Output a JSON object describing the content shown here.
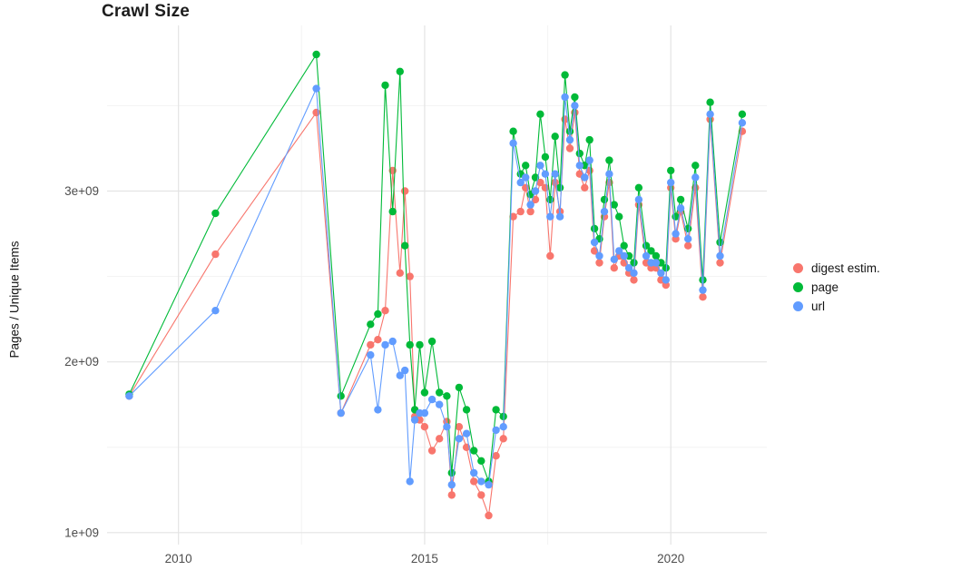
{
  "chart_data": {
    "type": "line",
    "title": "Crawl Size",
    "xlabel": "",
    "ylabel": "Pages / Unique Items",
    "y_unit": "values given in billions (1e9)",
    "xlim": [
      2008.55,
      2021.95
    ],
    "ylim": [
      0.93,
      3.97
    ],
    "grid": true,
    "legend_position": "right",
    "x_ticks": [
      2010,
      2015,
      2020
    ],
    "x_tick_labels": [
      "2010",
      "2015",
      "2020"
    ],
    "x_minor": [
      2012.5,
      2017.5
    ],
    "y_ticks": [
      1,
      2,
      3
    ],
    "y_tick_labels": [
      "1e+09",
      "2e+09",
      "3e+09"
    ],
    "y_minor": [
      1.5,
      2.5,
      3.5
    ],
    "style": {
      "grid_major": "#e4e4e4",
      "grid_minor": "#f3f3f3",
      "tick_label_color": "#4d4d4d",
      "background": "#ffffff"
    },
    "x": [
      2009.0,
      2010.75,
      2012.8,
      2013.3,
      2013.9,
      2014.05,
      2014.2,
      2014.35,
      2014.5,
      2014.6,
      2014.7,
      2014.8,
      2014.9,
      2015.0,
      2015.15,
      2015.3,
      2015.45,
      2015.55,
      2015.7,
      2015.85,
      2016.0,
      2016.15,
      2016.3,
      2016.45,
      2016.6,
      2016.8,
      2016.95,
      2017.05,
      2017.15,
      2017.25,
      2017.35,
      2017.45,
      2017.55,
      2017.65,
      2017.75,
      2017.85,
      2017.95,
      2018.05,
      2018.15,
      2018.25,
      2018.35,
      2018.45,
      2018.55,
      2018.65,
      2018.75,
      2018.85,
      2018.95,
      2019.05,
      2019.15,
      2019.25,
      2019.35,
      2019.5,
      2019.6,
      2019.7,
      2019.8,
      2019.9,
      2020.0,
      2020.1,
      2020.2,
      2020.35,
      2020.5,
      2020.65,
      2020.8,
      2021.0,
      2021.45
    ],
    "series": [
      {
        "id": "digest",
        "name": "digest estim.",
        "color": "#F8766D",
        "values": [
          1.8,
          2.63,
          3.46,
          1.7,
          2.1,
          2.13,
          2.3,
          3.12,
          2.52,
          3.0,
          2.5,
          1.68,
          1.66,
          1.62,
          1.48,
          1.55,
          1.65,
          1.22,
          1.62,
          1.5,
          1.3,
          1.22,
          1.1,
          1.45,
          1.55,
          2.85,
          2.88,
          3.02,
          2.88,
          2.95,
          3.05,
          3.02,
          2.62,
          3.05,
          2.88,
          3.42,
          3.25,
          3.46,
          3.1,
          3.02,
          3.12,
          2.65,
          2.58,
          2.85,
          3.05,
          2.55,
          2.62,
          2.58,
          2.52,
          2.48,
          2.92,
          2.58,
          2.55,
          2.55,
          2.48,
          2.45,
          3.02,
          2.72,
          2.88,
          2.68,
          3.02,
          2.38,
          3.42,
          2.58,
          3.35
        ]
      },
      {
        "id": "page",
        "name": "page",
        "color": "#00BA38",
        "values": [
          1.81,
          2.87,
          3.8,
          1.8,
          2.22,
          2.28,
          3.62,
          2.88,
          3.7,
          2.68,
          2.1,
          1.72,
          2.1,
          1.82,
          2.12,
          1.82,
          1.8,
          1.35,
          1.85,
          1.72,
          1.48,
          1.42,
          1.3,
          1.72,
          1.68,
          3.35,
          3.1,
          3.15,
          2.98,
          3.08,
          3.45,
          3.2,
          2.95,
          3.32,
          3.02,
          3.68,
          3.35,
          3.55,
          3.22,
          3.15,
          3.3,
          2.78,
          2.72,
          2.95,
          3.18,
          2.92,
          2.85,
          2.68,
          2.62,
          2.58,
          3.02,
          2.68,
          2.65,
          2.62,
          2.58,
          2.55,
          3.12,
          2.85,
          2.95,
          2.78,
          3.15,
          2.48,
          3.52,
          2.7,
          3.45
        ]
      },
      {
        "id": "url",
        "name": "url",
        "color": "#619CFF",
        "values": [
          1.8,
          2.3,
          3.6,
          1.7,
          2.04,
          1.72,
          2.1,
          2.12,
          1.92,
          1.95,
          1.3,
          1.66,
          1.7,
          1.7,
          1.78,
          1.75,
          1.62,
          1.28,
          1.55,
          1.58,
          1.35,
          1.3,
          1.28,
          1.6,
          1.62,
          3.28,
          3.05,
          3.08,
          2.92,
          3.0,
          3.15,
          3.1,
          2.85,
          3.1,
          2.85,
          3.55,
          3.3,
          3.5,
          3.15,
          3.08,
          3.18,
          2.7,
          2.62,
          2.88,
          3.1,
          2.6,
          2.65,
          2.62,
          2.55,
          2.52,
          2.95,
          2.62,
          2.58,
          2.58,
          2.52,
          2.48,
          3.05,
          2.75,
          2.9,
          2.72,
          3.08,
          2.42,
          3.45,
          2.62,
          3.4
        ]
      }
    ]
  }
}
